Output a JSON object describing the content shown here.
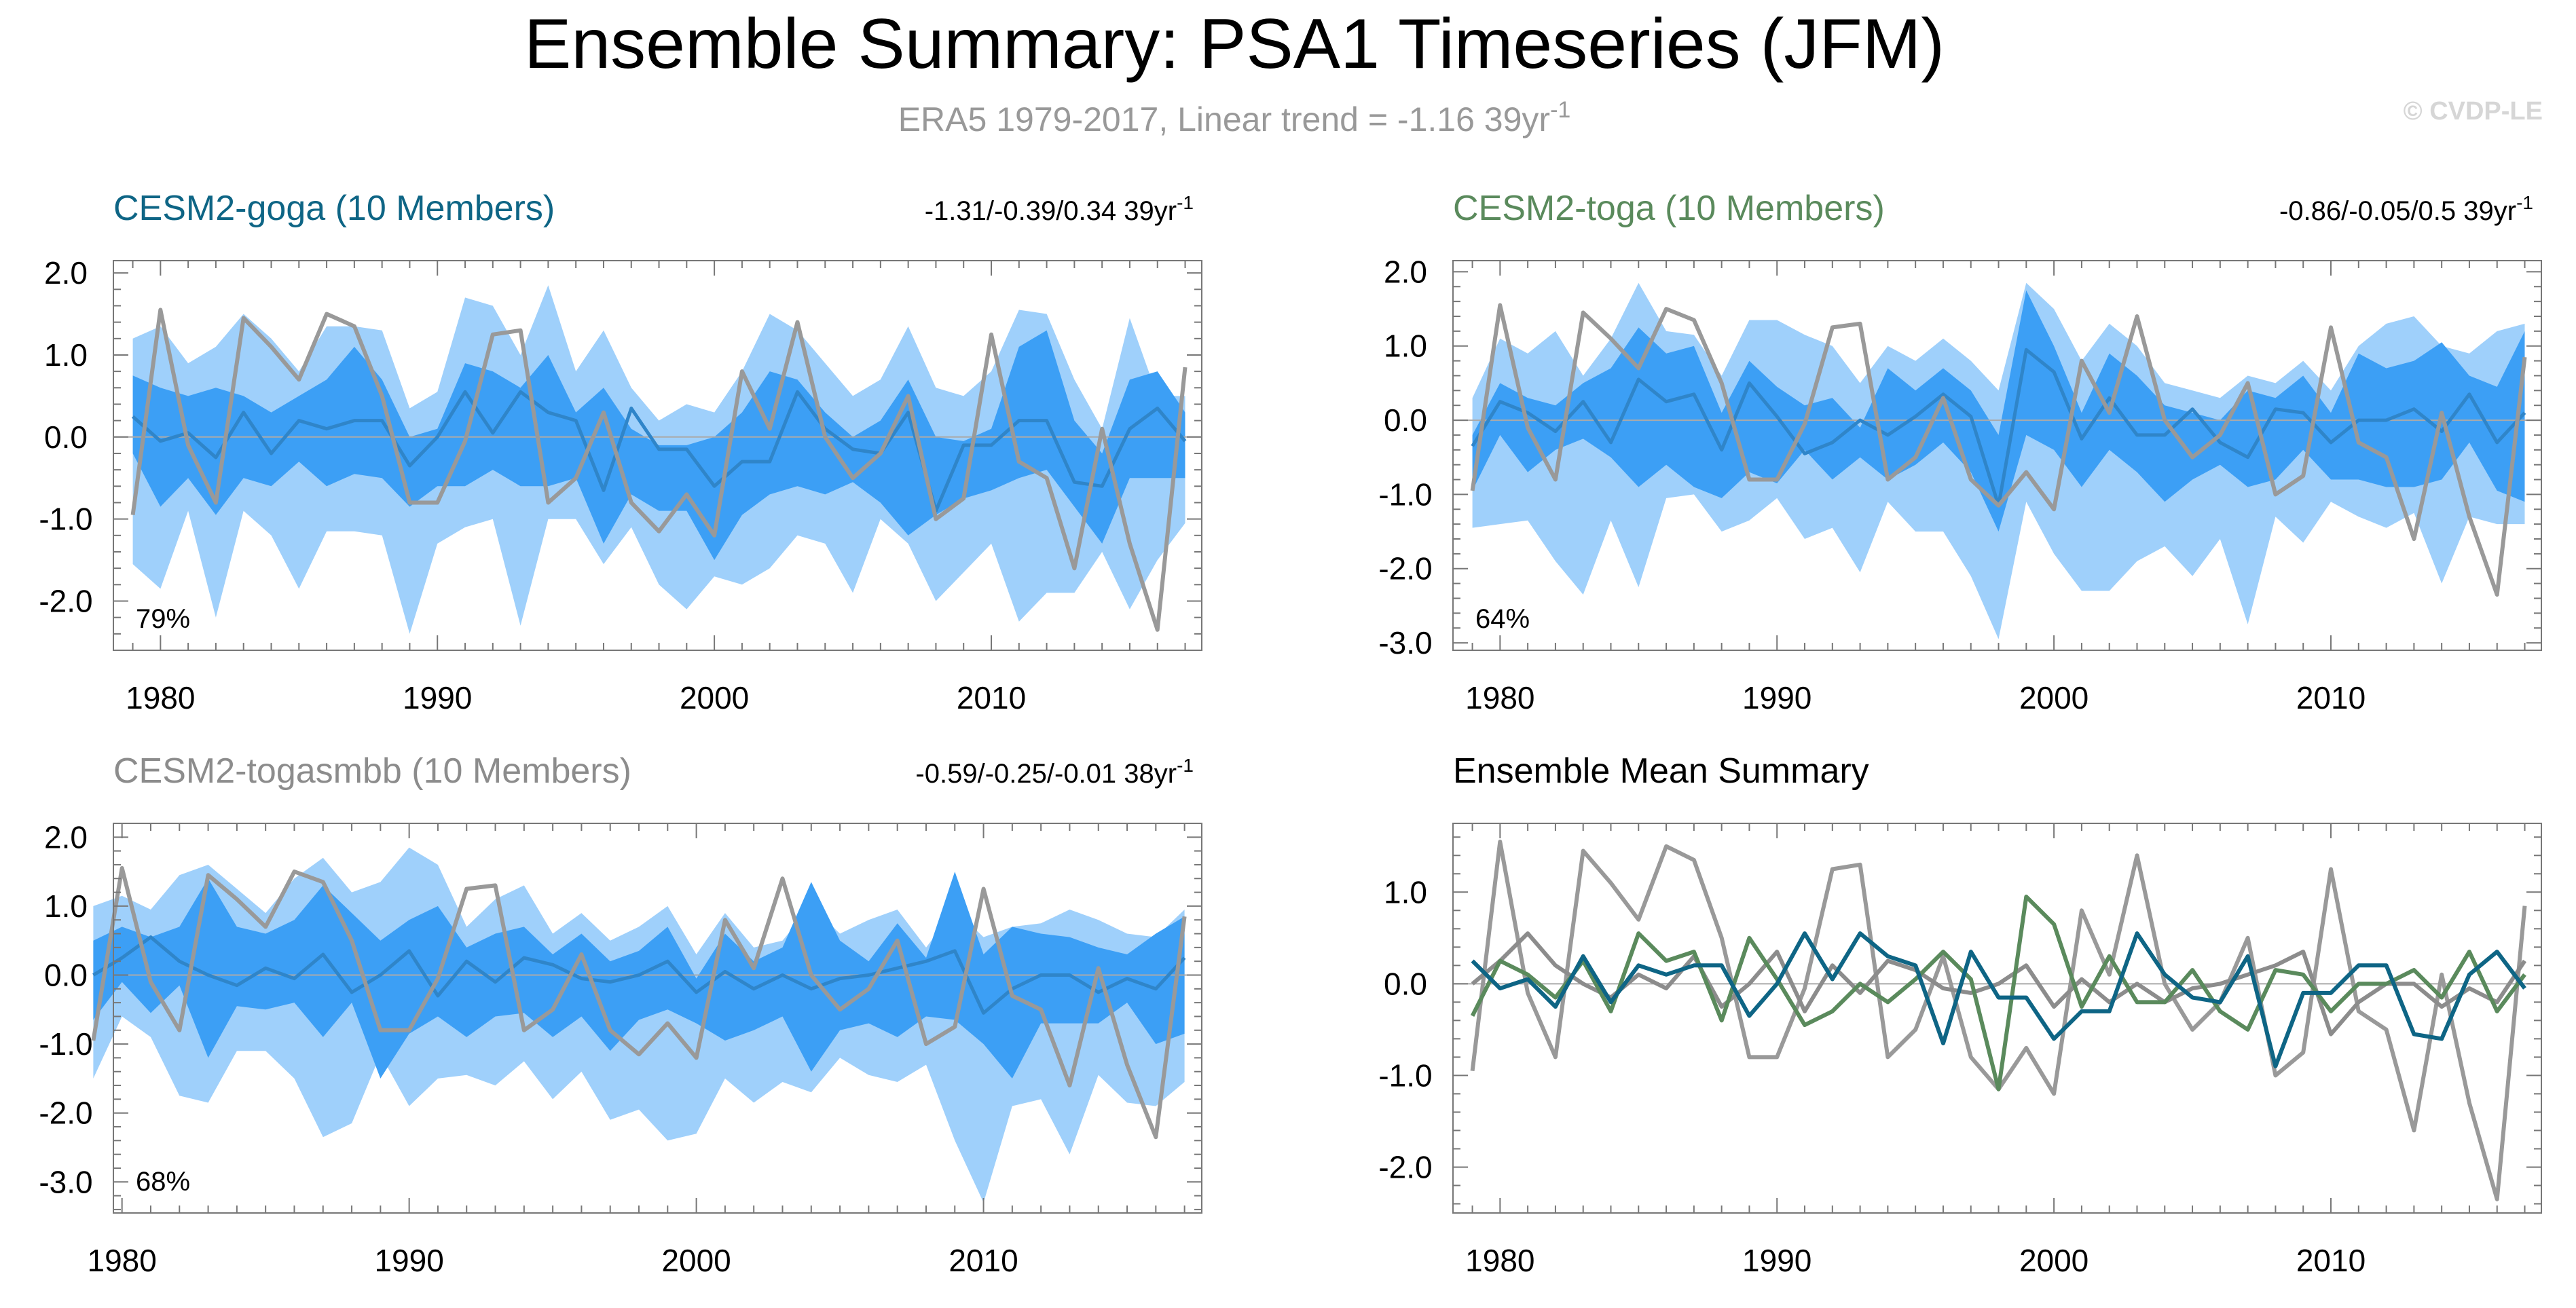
{
  "header": {
    "title": "Ensemble Summary: PSA1 Timeseries (JFM)",
    "subtitle_main": "ERA5 1979-2017, Linear trend = -1.16 39yr",
    "subtitle_sup": "-1",
    "credit": "© CVDP-LE"
  },
  "colors": {
    "band_outer": "#9fd0fb",
    "band_inner": "#3c9ff5",
    "ens_mean": "#2f85c9",
    "obs": "#999999",
    "goga": "#0e6585",
    "toga": "#5a8a5c",
    "togasmbb": "#8c8c8c",
    "axis": "#777777",
    "zero": "#aaaaaa",
    "text": "#000000"
  },
  "chart_data": [
    {
      "id": "goga",
      "type": "area",
      "title": "CESM2-goga (10 Members)",
      "title_color": "#0e6585",
      "trend": "-1.31/-0.39/0.34 39yr",
      "trend_sup": "-1",
      "pct": "79%",
      "x": [
        1979,
        1980,
        1981,
        1982,
        1983,
        1984,
        1985,
        1986,
        1987,
        1988,
        1989,
        1990,
        1991,
        1992,
        1993,
        1994,
        1995,
        1996,
        1997,
        1998,
        1999,
        2000,
        2001,
        2002,
        2003,
        2004,
        2005,
        2006,
        2007,
        2008,
        2009,
        2010,
        2011,
        2012,
        2013,
        2014,
        2015,
        2016,
        2017
      ],
      "xlim": [
        1978.3,
        2017.6
      ],
      "ylim": [
        -2.6,
        2.15
      ],
      "yticks": [
        2.0,
        1.0,
        0.0,
        -1.0,
        -2.0
      ],
      "ytick_labels": [
        "2.0",
        "1.0",
        "0.0",
        "-1.0",
        "-2.0"
      ],
      "xticks": [
        1980,
        1990,
        2000,
        2010
      ],
      "outer_upper": [
        1.2,
        1.35,
        0.9,
        1.1,
        1.5,
        1.2,
        0.8,
        1.35,
        1.35,
        1.3,
        0.35,
        0.55,
        1.7,
        1.6,
        1.0,
        1.85,
        0.8,
        1.3,
        0.6,
        0.2,
        0.4,
        0.3,
        0.8,
        1.5,
        1.3,
        0.9,
        0.5,
        0.7,
        1.35,
        0.6,
        0.5,
        0.8,
        1.55,
        1.5,
        0.7,
        0.1,
        1.45,
        0.5,
        0.5
      ],
      "inner_upper": [
        0.75,
        0.6,
        0.5,
        0.6,
        0.5,
        0.3,
        0.5,
        0.7,
        1.1,
        0.7,
        0.0,
        0.1,
        0.9,
        0.8,
        0.6,
        1.0,
        0.3,
        0.6,
        0.1,
        -0.1,
        -0.1,
        0.0,
        0.3,
        0.8,
        0.7,
        0.3,
        0.0,
        0.2,
        0.7,
        0.0,
        -0.05,
        0.1,
        1.1,
        1.3,
        0.2,
        -0.2,
        0.7,
        0.8,
        0.3
      ],
      "inner_lower": [
        -0.2,
        -0.85,
        -0.5,
        -0.95,
        -0.5,
        -0.6,
        -0.3,
        -0.6,
        -0.45,
        -0.5,
        -0.85,
        -0.6,
        -0.6,
        -0.4,
        -0.6,
        -0.6,
        -0.5,
        -1.3,
        -0.7,
        -0.9,
        -0.9,
        -1.5,
        -0.95,
        -0.7,
        -0.6,
        -0.7,
        -0.55,
        -0.8,
        -1.2,
        -0.95,
        -0.75,
        -0.65,
        -0.5,
        -0.4,
        -0.85,
        -1.3,
        -0.5,
        -0.5,
        -0.5
      ],
      "outer_lower": [
        -1.55,
        -1.85,
        -0.9,
        -2.2,
        -0.9,
        -1.2,
        -1.85,
        -1.15,
        -1.15,
        -1.2,
        -2.4,
        -1.3,
        -1.1,
        -1.0,
        -2.3,
        -1.0,
        -1.0,
        -1.55,
        -1.1,
        -1.8,
        -2.1,
        -1.7,
        -1.8,
        -1.6,
        -1.2,
        -1.3,
        -1.9,
        -1.0,
        -1.3,
        -2.0,
        -1.65,
        -1.3,
        -2.25,
        -1.9,
        -1.9,
        -1.4,
        -2.1,
        -1.5,
        -1.05
      ],
      "ens_mean": [
        0.25,
        -0.05,
        0.05,
        -0.25,
        0.3,
        -0.2,
        0.2,
        0.1,
        0.2,
        0.2,
        -0.35,
        0.0,
        0.55,
        0.05,
        0.55,
        0.3,
        0.2,
        -0.65,
        0.35,
        -0.15,
        -0.15,
        -0.6,
        -0.3,
        -0.3,
        0.55,
        0.1,
        -0.15,
        -0.2,
        0.3,
        -0.9,
        -0.1,
        -0.1,
        0.2,
        0.2,
        -0.55,
        -0.6,
        0.1,
        0.35,
        -0.05
      ],
      "obs": [
        -0.95,
        1.55,
        -0.1,
        -0.8,
        1.45,
        1.1,
        0.7,
        1.5,
        1.35,
        0.5,
        -0.8,
        -0.8,
        -0.05,
        1.25,
        1.3,
        -0.8,
        -0.5,
        0.3,
        -0.8,
        -1.15,
        -0.7,
        -1.2,
        0.8,
        0.1,
        1.4,
        0.0,
        -0.5,
        -0.2,
        0.5,
        -1.0,
        -0.75,
        1.25,
        -0.3,
        -0.5,
        -1.6,
        0.1,
        -1.3,
        -2.35,
        0.85
      ]
    },
    {
      "id": "toga",
      "type": "area",
      "title": "CESM2-toga (10 Members)",
      "title_color": "#5a8a5c",
      "trend": "-0.86/-0.05/0.5 39yr",
      "trend_sup": "-1",
      "pct": "64%",
      "x": [
        1979,
        1980,
        1981,
        1982,
        1983,
        1984,
        1985,
        1986,
        1987,
        1988,
        1989,
        1990,
        1991,
        1992,
        1993,
        1994,
        1995,
        1996,
        1997,
        1998,
        1999,
        2000,
        2001,
        2002,
        2003,
        2004,
        2005,
        2006,
        2007,
        2008,
        2009,
        2010,
        2011,
        2012,
        2013,
        2014,
        2015,
        2016,
        2017
      ],
      "xlim": [
        1978.3,
        2017.6
      ],
      "ylim": [
        -3.1,
        2.15
      ],
      "yticks": [
        2.0,
        1.0,
        0.0,
        -1.0,
        -2.0,
        -3.0
      ],
      "ytick_labels": [
        "2.0",
        "1.0",
        "0.0",
        "-1.0",
        "-2.0",
        "-3.0"
      ],
      "xticks": [
        1980,
        1990,
        2000,
        2010
      ],
      "outer_upper": [
        0.3,
        1.1,
        0.9,
        1.2,
        0.6,
        1.1,
        1.85,
        1.2,
        1.15,
        0.6,
        1.35,
        1.35,
        1.15,
        1.0,
        0.5,
        1.0,
        0.8,
        1.1,
        0.8,
        0.4,
        1.85,
        1.5,
        0.8,
        1.3,
        1.0,
        0.5,
        0.4,
        0.3,
        0.6,
        0.5,
        0.8,
        0.4,
        1.0,
        1.3,
        1.4,
        1.0,
        0.9,
        1.2,
        1.3
      ],
      "inner_upper": [
        -0.2,
        0.5,
        0.3,
        0.2,
        0.5,
        0.7,
        1.25,
        0.9,
        1.0,
        0.1,
        0.8,
        0.45,
        0.2,
        0.3,
        -0.1,
        0.7,
        0.4,
        0.7,
        0.4,
        -0.2,
        1.75,
        1.0,
        0.1,
        0.9,
        0.6,
        0.2,
        0.1,
        0.0,
        0.4,
        0.3,
        0.6,
        0.1,
        0.9,
        0.7,
        0.8,
        1.05,
        0.6,
        0.45,
        1.2
      ],
      "inner_lower": [
        -0.95,
        -0.2,
        -0.7,
        -0.4,
        -0.25,
        -0.5,
        -0.9,
        -0.6,
        -0.9,
        -1.05,
        -0.7,
        -0.85,
        -0.4,
        -0.8,
        -0.5,
        -0.8,
        -0.6,
        -0.3,
        -0.7,
        -1.5,
        -0.2,
        -0.4,
        -0.9,
        -0.4,
        -0.7,
        -1.1,
        -0.8,
        -0.6,
        -0.9,
        -0.8,
        -0.4,
        -0.8,
        -0.8,
        -0.9,
        -0.9,
        -0.8,
        -0.3,
        -0.95,
        -1.1
      ],
      "outer_lower": [
        -1.45,
        -1.4,
        -1.35,
        -1.9,
        -2.35,
        -1.35,
        -2.25,
        -1.05,
        -1.0,
        -1.5,
        -1.35,
        -1.05,
        -1.6,
        -1.45,
        -2.05,
        -1.1,
        -1.5,
        -1.5,
        -2.1,
        -2.95,
        -1.1,
        -1.8,
        -2.3,
        -2.3,
        -1.9,
        -1.7,
        -2.1,
        -1.6,
        -2.75,
        -1.3,
        -1.65,
        -1.1,
        -1.3,
        -1.45,
        -1.25,
        -2.2,
        -1.3,
        -1.4,
        -1.4
      ],
      "ens_mean": [
        -0.35,
        0.25,
        0.1,
        -0.15,
        0.25,
        -0.3,
        0.55,
        0.25,
        0.35,
        -0.4,
        0.5,
        0.05,
        -0.45,
        -0.3,
        0.0,
        -0.2,
        0.05,
        0.35,
        0.05,
        -1.15,
        0.95,
        0.65,
        -0.25,
        0.3,
        -0.2,
        -0.2,
        0.15,
        -0.3,
        -0.5,
        0.15,
        0.1,
        -0.3,
        0.0,
        0.0,
        0.15,
        -0.15,
        0.35,
        -0.3,
        0.1
      ],
      "obs": [
        -0.95,
        1.55,
        -0.1,
        -0.8,
        1.45,
        1.1,
        0.7,
        1.5,
        1.35,
        0.5,
        -0.8,
        -0.8,
        -0.05,
        1.25,
        1.3,
        -0.8,
        -0.5,
        0.3,
        -0.8,
        -1.15,
        -0.7,
        -1.2,
        0.8,
        0.1,
        1.4,
        0.0,
        -0.5,
        -0.2,
        0.5,
        -1.0,
        -0.75,
        1.25,
        -0.3,
        -0.5,
        -1.6,
        0.1,
        -1.3,
        -2.35,
        0.85
      ]
    },
    {
      "id": "togasmbb",
      "type": "area",
      "title": "CESM2-togasmbb (10 Members)",
      "title_color": "#8c8c8c",
      "trend": "-0.59/-0.25/-0.01 38yr",
      "trend_sup": "-1",
      "pct": "68%",
      "x": [
        1979,
        1980,
        1981,
        1982,
        1983,
        1984,
        1985,
        1986,
        1987,
        1988,
        1989,
        1990,
        1991,
        1992,
        1993,
        1994,
        1995,
        1996,
        1997,
        1998,
        1999,
        2000,
        2001,
        2002,
        2003,
        2004,
        2005,
        2006,
        2007,
        2008,
        2009,
        2010,
        2011,
        2012,
        2013,
        2014,
        2015,
        2016,
        2017
      ],
      "xlim": [
        1979.7,
        2017.6
      ],
      "ylim": [
        -3.45,
        2.2
      ],
      "yticks": [
        2.0,
        1.0,
        0.0,
        -1.0,
        -2.0,
        -3.0
      ],
      "ytick_labels": [
        "2.0",
        "1.0",
        "0.0",
        "-1.0",
        "-2.0",
        "-3.0"
      ],
      "xticks": [
        1980,
        1990,
        2000,
        2010
      ],
      "outer_upper": [
        1.0,
        1.15,
        0.95,
        1.45,
        1.6,
        1.25,
        0.9,
        1.4,
        1.7,
        1.2,
        1.35,
        1.85,
        1.6,
        0.7,
        1.1,
        1.3,
        0.6,
        0.9,
        0.5,
        0.7,
        1.0,
        0.3,
        0.9,
        0.4,
        0.5,
        1.0,
        0.6,
        0.8,
        0.95,
        0.4,
        0.95,
        0.55,
        0.7,
        0.75,
        0.95,
        0.8,
        0.6,
        0.55,
        0.95
      ],
      "inner_upper": [
        0.5,
        0.7,
        0.55,
        0.7,
        1.4,
        0.7,
        0.6,
        0.8,
        1.3,
        0.9,
        0.5,
        0.8,
        1.0,
        0.4,
        0.6,
        0.7,
        0.3,
        0.6,
        0.2,
        0.35,
        0.7,
        -0.05,
        0.6,
        0.2,
        0.4,
        1.35,
        0.5,
        0.2,
        0.75,
        0.25,
        1.5,
        0.3,
        0.7,
        0.6,
        0.55,
        0.4,
        0.3,
        0.6,
        0.85
      ],
      "inner_lower": [
        -0.65,
        -0.1,
        -0.55,
        -0.15,
        -1.2,
        -0.45,
        -0.5,
        -0.4,
        -0.9,
        -0.4,
        -1.5,
        -0.85,
        -0.6,
        -0.9,
        -0.6,
        -0.55,
        -0.9,
        -0.6,
        -1.1,
        -0.65,
        -0.5,
        -0.7,
        -0.95,
        -0.8,
        -0.6,
        -1.4,
        -0.8,
        -0.7,
        -0.9,
        -0.6,
        -0.65,
        -1.0,
        -1.5,
        -0.7,
        -0.7,
        -0.7,
        -0.4,
        -1.0,
        -0.85
      ],
      "outer_lower": [
        -1.5,
        -0.6,
        -0.9,
        -1.75,
        -1.85,
        -1.1,
        -1.1,
        -1.5,
        -2.35,
        -2.15,
        -1.15,
        -1.9,
        -1.5,
        -1.45,
        -1.6,
        -1.25,
        -1.8,
        -1.4,
        -2.1,
        -1.95,
        -2.4,
        -2.3,
        -1.5,
        -1.85,
        -1.55,
        -1.7,
        -1.2,
        -1.45,
        -1.55,
        -1.3,
        -2.4,
        -3.3,
        -1.9,
        -1.8,
        -2.6,
        -1.45,
        -1.85,
        -1.9,
        -1.55
      ],
      "ens_mean": [
        0.0,
        0.25,
        0.55,
        0.2,
        0.0,
        -0.15,
        0.1,
        -0.05,
        0.3,
        -0.25,
        0.0,
        0.35,
        -0.3,
        0.2,
        -0.1,
        0.25,
        0.15,
        -0.05,
        -0.1,
        0.0,
        0.2,
        -0.25,
        0.05,
        -0.2,
        0.0,
        -0.2,
        -0.05,
        0.0,
        0.1,
        0.2,
        0.35,
        -0.55,
        -0.2,
        0.0,
        0.0,
        -0.25,
        -0.05,
        -0.2,
        0.25
      ],
      "obs": [
        -0.95,
        1.55,
        -0.1,
        -0.8,
        1.45,
        1.1,
        0.7,
        1.5,
        1.35,
        0.5,
        -0.8,
        -0.8,
        -0.05,
        1.25,
        1.3,
        -0.8,
        -0.5,
        0.3,
        -0.8,
        -1.15,
        -0.7,
        -1.2,
        0.8,
        0.1,
        1.4,
        0.0,
        -0.5,
        -0.2,
        0.5,
        -1.0,
        -0.75,
        1.25,
        -0.3,
        -0.5,
        -1.6,
        0.1,
        -1.3,
        -2.35,
        0.85
      ]
    },
    {
      "id": "summary",
      "type": "line",
      "title": "Ensemble Mean Summary",
      "title_color": "#000000",
      "x": [
        1979,
        1980,
        1981,
        1982,
        1983,
        1984,
        1985,
        1986,
        1987,
        1988,
        1989,
        1990,
        1991,
        1992,
        1993,
        1994,
        1995,
        1996,
        1997,
        1998,
        1999,
        2000,
        2001,
        2002,
        2003,
        2004,
        2005,
        2006,
        2007,
        2008,
        2009,
        2010,
        2011,
        2012,
        2013,
        2014,
        2015,
        2016,
        2017
      ],
      "xlim": [
        1978.3,
        2017.6
      ],
      "ylim": [
        -2.5,
        1.75
      ],
      "yticks": [
        1.0,
        0.0,
        -1.0,
        -2.0
      ],
      "ytick_labels": [
        "1.0",
        "0.0",
        "-1.0",
        "-2.0"
      ],
      "xticks": [
        1980,
        1990,
        2000,
        2010
      ],
      "series": [
        {
          "name": "ERA5",
          "color": "#999999",
          "values": [
            -0.95,
            1.55,
            -0.1,
            -0.8,
            1.45,
            1.1,
            0.7,
            1.5,
            1.35,
            0.5,
            -0.8,
            -0.8,
            -0.05,
            1.25,
            1.3,
            -0.8,
            -0.5,
            0.3,
            -0.8,
            -1.15,
            -0.7,
            -1.2,
            0.8,
            0.1,
            1.4,
            0.0,
            -0.5,
            -0.2,
            0.5,
            -1.0,
            -0.75,
            1.25,
            -0.3,
            -0.5,
            -1.6,
            0.1,
            -1.3,
            -2.35,
            0.85
          ]
        },
        {
          "name": "CESM2-togasmbb",
          "color": "#8c8c8c",
          "values": [
            0.0,
            0.25,
            0.55,
            0.2,
            0.0,
            -0.15,
            0.1,
            -0.05,
            0.3,
            -0.25,
            0.0,
            0.35,
            -0.3,
            0.2,
            -0.1,
            0.25,
            0.15,
            -0.05,
            -0.1,
            0.0,
            0.2,
            -0.25,
            0.05,
            -0.2,
            0.0,
            -0.2,
            -0.05,
            0.0,
            0.1,
            0.2,
            0.35,
            -0.55,
            -0.2,
            0.0,
            0.0,
            -0.25,
            -0.05,
            -0.2,
            0.25
          ]
        },
        {
          "name": "CESM2-toga",
          "color": "#5a8a5c",
          "values": [
            -0.35,
            0.25,
            0.1,
            -0.15,
            0.25,
            -0.3,
            0.55,
            0.25,
            0.35,
            -0.4,
            0.5,
            0.05,
            -0.45,
            -0.3,
            0.0,
            -0.2,
            0.05,
            0.35,
            0.05,
            -1.15,
            0.95,
            0.65,
            -0.25,
            0.3,
            -0.2,
            -0.2,
            0.15,
            -0.3,
            -0.5,
            0.15,
            0.1,
            -0.3,
            0.0,
            0.0,
            0.15,
            -0.15,
            0.35,
            -0.3,
            0.1
          ]
        },
        {
          "name": "CESM2-goga",
          "color": "#0e6585",
          "values": [
            0.25,
            -0.05,
            0.05,
            -0.25,
            0.3,
            -0.2,
            0.2,
            0.1,
            0.2,
            0.2,
            -0.35,
            0.0,
            0.55,
            0.05,
            0.55,
            0.3,
            0.2,
            -0.65,
            0.35,
            -0.15,
            -0.15,
            -0.6,
            -0.3,
            -0.3,
            0.55,
            0.1,
            -0.15,
            -0.2,
            0.3,
            -0.9,
            -0.1,
            -0.1,
            0.2,
            0.2,
            -0.55,
            -0.6,
            0.1,
            0.35,
            -0.05
          ]
        }
      ]
    }
  ]
}
